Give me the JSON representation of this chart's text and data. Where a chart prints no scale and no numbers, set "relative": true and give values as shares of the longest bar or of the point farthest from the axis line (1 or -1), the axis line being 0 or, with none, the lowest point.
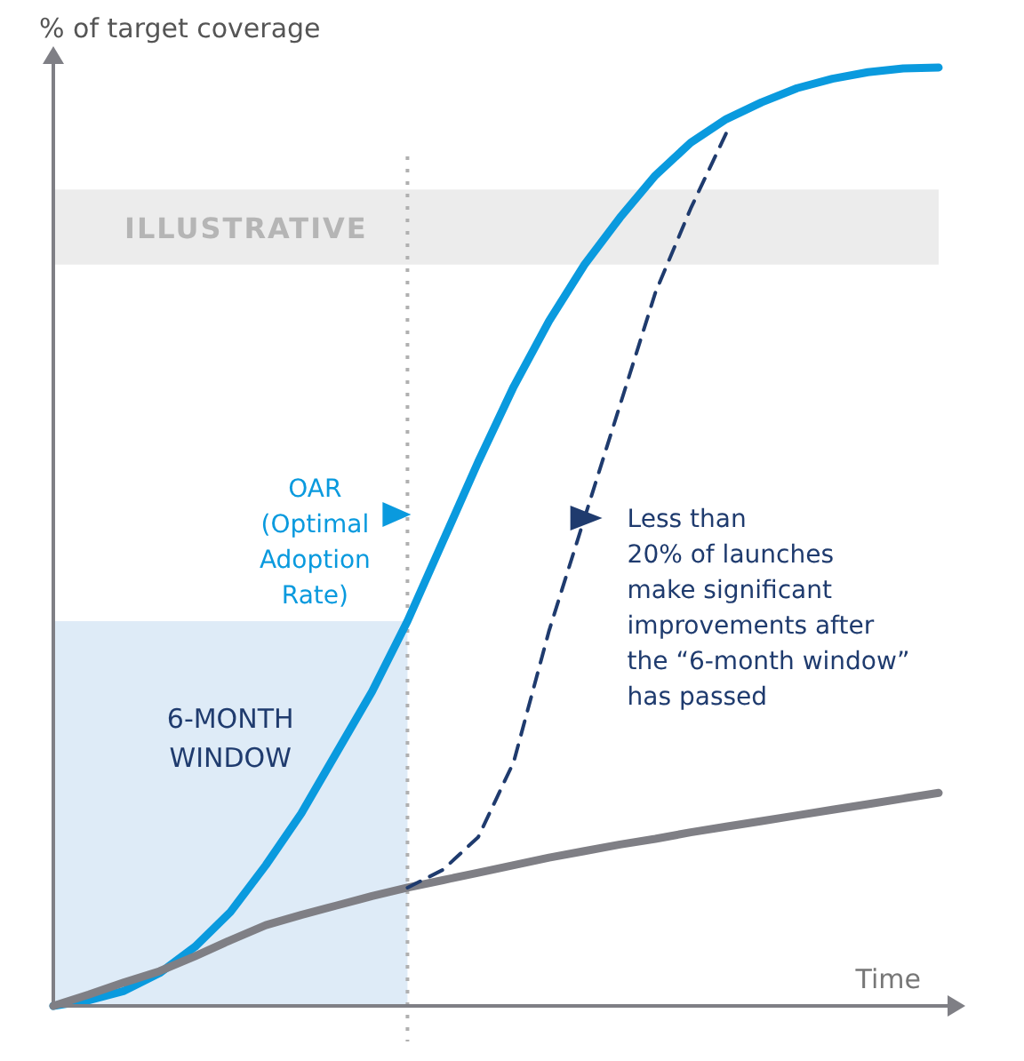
{
  "chart_data": {
    "type": "line",
    "relative": true,
    "xlabel": "Time",
    "ylabel": "% of target coverage",
    "categories": [
      null,
      null,
      null,
      null,
      null,
      null,
      null,
      null,
      null,
      null,
      null,
      null,
      null,
      null,
      null,
      null,
      null,
      null,
      null,
      null,
      null,
      null,
      null,
      null,
      null,
      null
    ],
    "series": [
      {
        "color": "#0a9ade",
        "values": [
          0,
          0.006,
          0.016,
          0.035,
          0.063,
          0.1,
          0.15,
          0.205,
          0.27,
          0.335,
          0.41,
          0.495,
          0.58,
          0.66,
          0.73,
          0.79,
          0.84,
          0.885,
          0.92,
          0.945,
          0.963,
          0.978,
          0.988,
          0.995,
          0.999,
          1
        ]
      },
      {
        "color": "#7f7f85",
        "values": [
          0,
          0.012,
          0.025,
          0.037,
          0.053,
          0.07,
          0.086,
          0.097,
          0.107,
          0.117,
          0.126,
          0.134,
          0.142,
          0.15,
          0.158,
          0.165,
          0.172,
          0.178,
          0.185,
          0.191,
          0.197,
          0.203,
          0.209,
          0.215,
          0.221,
          0.227
        ]
      },
      {
        "color": "#1f3b6e",
        "line_style": "dashed",
        "values": [
          null,
          null,
          null,
          null,
          null,
          null,
          null,
          null,
          null,
          null,
          0.126,
          0.145,
          0.18,
          0.26,
          0.4,
          0.52,
          0.64,
          0.76,
          0.85,
          0.93,
          null,
          null,
          null,
          null,
          null,
          null
        ]
      }
    ],
    "annotations": [
      "ILLUSTRATIVE",
      "6-MONTH WINDOW",
      "OAR\n(Optimal\nAdoption\nRate)",
      "Less than\n20% of launches\nmake significant\nimprovements after\nthe “6-month window”\nhas passed"
    ]
  }
}
